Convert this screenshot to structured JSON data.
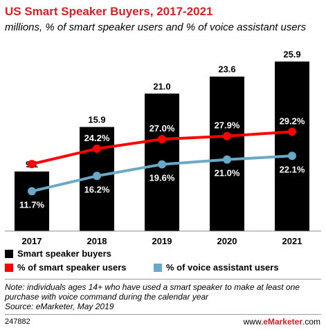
{
  "header": {
    "title": "US Smart Speaker Buyers, 2017-2021",
    "subtitle": "millions, % of smart speaker users and % of voice assistant users"
  },
  "chart_data": {
    "type": "bar",
    "categories": [
      "2017",
      "2018",
      "2019",
      "2020",
      "2021"
    ],
    "series": [
      {
        "name": "Smart speaker buyers",
        "type": "bar",
        "color": "#000000",
        "values": [
          9.1,
          15.9,
          21.0,
          23.6,
          25.9
        ],
        "labels": [
          "9.1",
          "15.9",
          "21.0",
          "23.6",
          "25.9"
        ]
      },
      {
        "name": "% of smart speaker users",
        "type": "line",
        "color": "#ff0000",
        "values": [
          19.7,
          24.2,
          27.0,
          27.9,
          29.2
        ],
        "labels": [
          "19.7%",
          "24.2%",
          "27.0%",
          "27.9%",
          "29.2%"
        ]
      },
      {
        "name": "% of voice assistant users",
        "type": "line",
        "color": "#6aa8c8",
        "values": [
          11.7,
          16.2,
          19.6,
          21.0,
          22.1
        ],
        "labels": [
          "11.7%",
          "16.2%",
          "19.6%",
          "21.0%",
          "22.1%"
        ]
      }
    ],
    "bar_ylim": [
      0,
      26
    ],
    "line_ylim": [
      0,
      50
    ],
    "grid": false,
    "legend_position": "bottom"
  },
  "legend": [
    {
      "label": "Smart speaker buyers",
      "color": "#000000"
    },
    {
      "label": "% of smart speaker users",
      "color": "#ff0000"
    },
    {
      "label": "% of voice assistant users",
      "color": "#6aa8c8"
    }
  ],
  "note": "Note: individuals ages 14+ who have used a smart speaker to make at least one purchase with voice command during the calendar year",
  "source": "Source: eMarketer, May 2019",
  "footer": {
    "chart_id": "247882",
    "brand_prefix": "www.",
    "brand_name": "eMarketer",
    "brand_suffix": ".com"
  }
}
